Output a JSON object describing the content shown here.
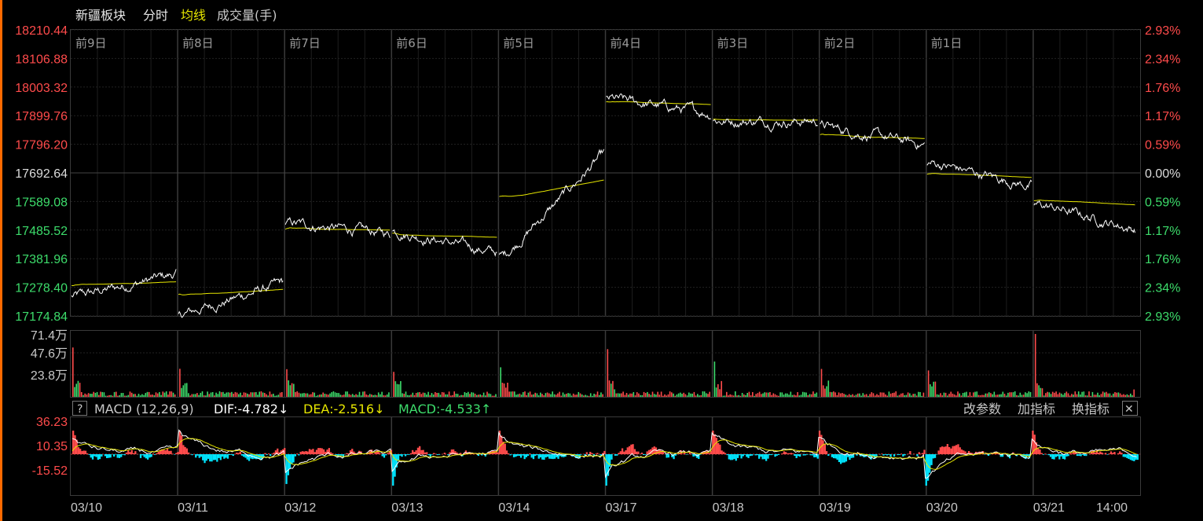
{
  "header": {
    "title": "新疆板块",
    "tab_intraday": "分时",
    "tab_avgline": "均线",
    "tab_volume": "成交量(手)"
  },
  "price_axis": {
    "left_labels": [
      "18210.44",
      "18106.88",
      "18003.32",
      "17899.76",
      "17796.20",
      "17692.64",
      "17589.08",
      "17485.52",
      "17381.96",
      "17278.40",
      "17174.84"
    ],
    "right_labels": [
      "2.93%",
      "2.34%",
      "1.76%",
      "1.17%",
      "0.59%",
      "0.00%",
      "0.59%",
      "1.17%",
      "1.76%",
      "2.34%",
      "2.93%"
    ],
    "reference_price": 17692.64
  },
  "day_labels": [
    "前9日",
    "前8日",
    "前7日",
    "前6日",
    "前5日",
    "前4日",
    "前3日",
    "前2日",
    "前1日"
  ],
  "volume_axis": {
    "labels": [
      "71.4万",
      "47.6万",
      "23.8万"
    ],
    "max": 71.4
  },
  "macd_header": {
    "help": "?",
    "name": "MACD (12,26,9)",
    "dif": "DIF:-4.782↓",
    "dea": "DEA:-2.516↓",
    "macd": "MACD:-4.533↑",
    "btn_params": "改参数",
    "btn_add": "加指标",
    "btn_switch": "换指标",
    "btn_close": "✕"
  },
  "macd_axis": {
    "labels": [
      "36.23",
      "10.35",
      "-15.52"
    ]
  },
  "date_labels": [
    "03/10",
    "03/11",
    "03/12",
    "03/13",
    "03/14",
    "03/17",
    "03/18",
    "03/19",
    "03/20",
    "03/21",
    "14:00"
  ],
  "colors": {
    "up": "#ff4b4b",
    "down": "#3ddc6b",
    "price": "#ffffff",
    "avg": "#e6e600",
    "grid": "#2a2a2a",
    "macd_neg": "#00e5ff"
  },
  "chart_data": {
    "type": "line",
    "title": "新疆板块",
    "ylim": [
      17174.84,
      18210.44
    ],
    "series": [
      {
        "name": "分时",
        "day_close_approx": [
          17330,
          17300,
          17470,
          17400,
          17780,
          17905,
          17880,
          17790,
          17640,
          17480
        ]
      },
      {
        "name": "均线",
        "day_avg_approx": [
          17305,
          17290,
          17480,
          17470,
          17720,
          17940,
          17890,
          17810,
          17670,
          17600
        ]
      }
    ]
  }
}
